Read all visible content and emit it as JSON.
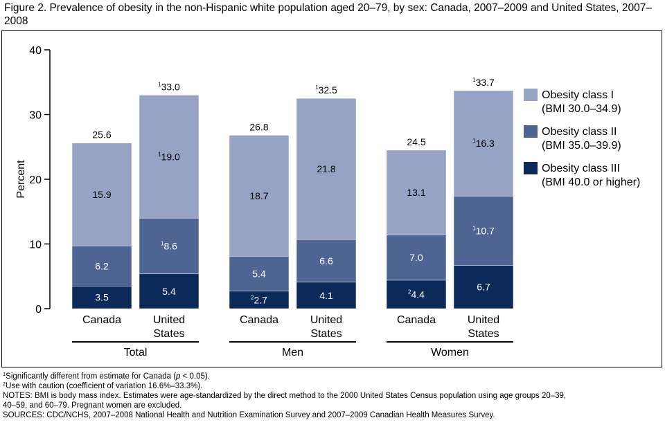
{
  "figure": {
    "title": "Figure 2. Prevalence of obesity in the non-Hispanic white population aged 20–79, by sex: Canada, 2007–2009 and United States, 2007–2008"
  },
  "chart_data": {
    "type": "bar",
    "stacked": true,
    "ylabel": "Percent",
    "ylim": [
      0,
      40
    ],
    "yticks": [
      0,
      10,
      20,
      30,
      40
    ],
    "groups": [
      {
        "name": "Total",
        "bars": [
          {
            "label": [
              "Canada"
            ],
            "total": 25.6,
            "total_note": "",
            "segments": [
              {
                "class": "III",
                "value": 3.5,
                "text": "3.5",
                "note": ""
              },
              {
                "class": "II",
                "value": 6.2,
                "text": "6.2",
                "note": ""
              },
              {
                "class": "I",
                "value": 15.9,
                "text": "15.9",
                "note": ""
              }
            ]
          },
          {
            "label": [
              "United",
              "States"
            ],
            "total": 33.0,
            "total_note": "1",
            "segments": [
              {
                "class": "III",
                "value": 5.4,
                "text": "5.4",
                "note": ""
              },
              {
                "class": "II",
                "value": 8.6,
                "text": "8.6",
                "note": "1"
              },
              {
                "class": "I",
                "value": 19.0,
                "text": "19.0",
                "note": "1"
              }
            ]
          }
        ]
      },
      {
        "name": "Men",
        "bars": [
          {
            "label": [
              "Canada"
            ],
            "total": 26.8,
            "total_note": "",
            "segments": [
              {
                "class": "III",
                "value": 2.7,
                "text": "2.7",
                "note": "2"
              },
              {
                "class": "II",
                "value": 5.4,
                "text": "5.4",
                "note": ""
              },
              {
                "class": "I",
                "value": 18.7,
                "text": "18.7",
                "note": ""
              }
            ]
          },
          {
            "label": [
              "United",
              "States"
            ],
            "total": 32.5,
            "total_note": "1",
            "segments": [
              {
                "class": "III",
                "value": 4.1,
                "text": "4.1",
                "note": ""
              },
              {
                "class": "II",
                "value": 6.6,
                "text": "6.6",
                "note": ""
              },
              {
                "class": "I",
                "value": 21.8,
                "text": "21.8",
                "note": ""
              }
            ]
          }
        ]
      },
      {
        "name": "Women",
        "bars": [
          {
            "label": [
              "Canada"
            ],
            "total": 24.5,
            "total_note": "",
            "segments": [
              {
                "class": "III",
                "value": 4.4,
                "text": "4.4",
                "note": "2"
              },
              {
                "class": "II",
                "value": 7.0,
                "text": "7.0",
                "note": ""
              },
              {
                "class": "I",
                "value": 13.1,
                "text": "13.1",
                "note": ""
              }
            ]
          },
          {
            "label": [
              "United",
              "States"
            ],
            "total": 33.7,
            "total_note": "1",
            "segments": [
              {
                "class": "III",
                "value": 6.7,
                "text": "6.7",
                "note": ""
              },
              {
                "class": "II",
                "value": 10.7,
                "text": "10.7",
                "note": "1"
              },
              {
                "class": "I",
                "value": 16.3,
                "text": "16.3",
                "note": "1"
              }
            ]
          }
        ]
      }
    ],
    "series": [
      {
        "class": "I",
        "name": "Obesity class I",
        "range": "(BMI 30.0–34.9)",
        "color": "#97a3c5",
        "text_color": "#000000"
      },
      {
        "class": "II",
        "name": "Obesity class II",
        "range": "(BMI 35.0–39.9)",
        "color": "#4e6492",
        "text_color": "#ffffff"
      },
      {
        "class": "III",
        "name": "Obesity class III",
        "range": "(BMI 40.0 or higher)",
        "color": "#0b2a5a",
        "text_color": "#ffffff"
      }
    ],
    "legend_position": "right"
  },
  "footnotes": {
    "note1_mark": "1",
    "note1_a": "Significantly different from estimate for Canada (",
    "note1_p": "p",
    "note1_b": " < 0.05).",
    "note2_mark": "2",
    "note2": "Use with caution (coefficient of variation 16.6%–33.3%).",
    "notes_line1": "NOTES: BMI is body mass index. Estimates were age-standardized by the direct method to the 2000 United States Census population using age groups 20–39,",
    "notes_line2": "40–59, and 60–79. Pregnant women are excluded.",
    "sources": "SOURCES: CDC/NCHS, 2007–2008 National Health and Nutrition Examination Survey and 2007–2009 Canadian Health Measures Survey."
  }
}
